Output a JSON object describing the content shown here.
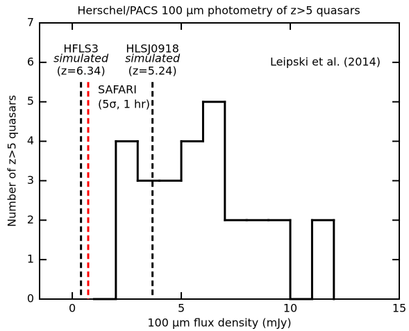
{
  "chart_data": {
    "type": "histogram",
    "title": "Herschel/PACS 100 μm photometry of z>5 quasars",
    "xlabel": "100 μm flux density (mJy)",
    "ylabel": "Number of z>5 quasars",
    "bins": [
      1,
      2,
      3,
      4,
      5,
      6,
      7,
      8,
      9,
      10,
      11,
      12
    ],
    "values": [
      0,
      4,
      3,
      3,
      4,
      5,
      2,
      2,
      2,
      0,
      2
    ],
    "color": "#000000",
    "xlim": [
      -1.5,
      15
    ],
    "xticks": [
      0,
      5,
      10,
      15
    ],
    "ylim": [
      0,
      7
    ],
    "yticks": [
      0,
      1,
      2,
      3,
      4,
      5,
      6,
      7
    ],
    "annotation": "Leipski et al. (2014)",
    "vlines": [
      {
        "x": 0.4,
        "color": "#000000",
        "lines": [
          "HFLS3",
          "simulated",
          "(z=6.34)"
        ]
      },
      {
        "x": 0.73,
        "color": "#ff0000",
        "lines": [
          "SAFARI",
          "(5σ, 1 hr)"
        ]
      },
      {
        "x": 3.68,
        "color": "#000000",
        "lines": [
          "HLSJ0918",
          "simulated",
          "(z=5.24)"
        ]
      }
    ]
  }
}
